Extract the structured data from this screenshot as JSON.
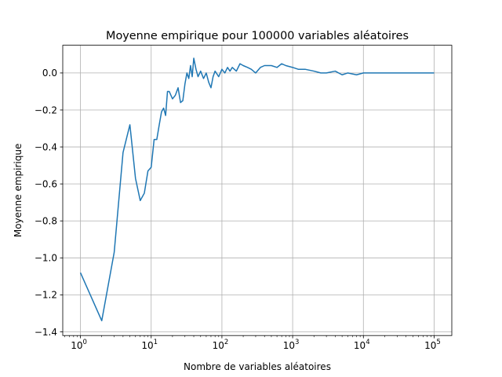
{
  "chart_data": {
    "type": "line",
    "title": "Moyenne empirique pour 100000 variables aléatoires",
    "xlabel": "Nombre de variables aléatoires",
    "ylabel": "Moyenne empirique",
    "xscale": "log",
    "xlim": [
      0.562,
      177800
    ],
    "ylim": [
      -1.42,
      0.15
    ],
    "grid": true,
    "line_color": "#1f77b4",
    "x_ticks": [
      {
        "value": 1,
        "base": "10",
        "exp": "0"
      },
      {
        "value": 10,
        "base": "10",
        "exp": "1"
      },
      {
        "value": 100,
        "base": "10",
        "exp": "2"
      },
      {
        "value": 1000,
        "base": "10",
        "exp": "3"
      },
      {
        "value": 10000,
        "base": "10",
        "exp": "4"
      },
      {
        "value": 100000,
        "base": "10",
        "exp": "5"
      }
    ],
    "y_ticks": [
      {
        "value": 0.0,
        "label": "0.0"
      },
      {
        "value": -0.2,
        "label": "−0.2"
      },
      {
        "value": -0.4,
        "label": "−0.4"
      },
      {
        "value": -0.6,
        "label": "−0.6"
      },
      {
        "value": -0.8,
        "label": "−0.8"
      },
      {
        "value": -1.0,
        "label": "−1.0"
      },
      {
        "value": -1.2,
        "label": "−1.2"
      },
      {
        "value": -1.4,
        "label": "−1.4"
      }
    ],
    "series": [
      {
        "x": [
          1,
          2,
          3,
          4,
          5,
          6,
          7,
          8,
          9,
          10,
          11,
          12,
          13,
          14,
          15,
          16,
          17,
          18,
          20,
          22,
          24,
          26,
          28,
          30,
          32,
          34,
          36,
          38,
          40,
          43,
          46,
          50,
          55,
          60,
          65,
          70,
          75,
          80,
          90,
          100,
          110,
          120,
          130,
          140,
          160,
          180,
          200,
          230,
          260,
          300,
          350,
          400,
          500,
          600,
          700,
          800,
          1000,
          1200,
          1500,
          2000,
          2500,
          3000,
          4000,
          5000,
          6000,
          8000,
          10000,
          15000,
          20000,
          30000,
          50000,
          70000,
          100000
        ],
        "y": [
          -1.08,
          -1.34,
          -0.97,
          -0.43,
          -0.28,
          -0.57,
          -0.69,
          -0.65,
          -0.53,
          -0.51,
          -0.36,
          -0.36,
          -0.28,
          -0.21,
          -0.19,
          -0.23,
          -0.1,
          -0.1,
          -0.14,
          -0.12,
          -0.08,
          -0.16,
          -0.15,
          -0.06,
          0.0,
          -0.03,
          0.04,
          -0.02,
          0.08,
          0.02,
          -0.02,
          0.01,
          -0.03,
          0.0,
          -0.05,
          -0.08,
          -0.02,
          0.01,
          -0.02,
          0.02,
          0.0,
          0.03,
          0.01,
          0.03,
          0.01,
          0.05,
          0.04,
          0.03,
          0.02,
          0.0,
          0.03,
          0.04,
          0.04,
          0.03,
          0.05,
          0.04,
          0.03,
          0.02,
          0.02,
          0.01,
          0.0,
          0.0,
          0.01,
          -0.01,
          0.0,
          -0.01,
          0.0,
          0.0,
          0.0,
          0.0,
          0.0,
          0.0,
          0.0
        ]
      }
    ]
  }
}
